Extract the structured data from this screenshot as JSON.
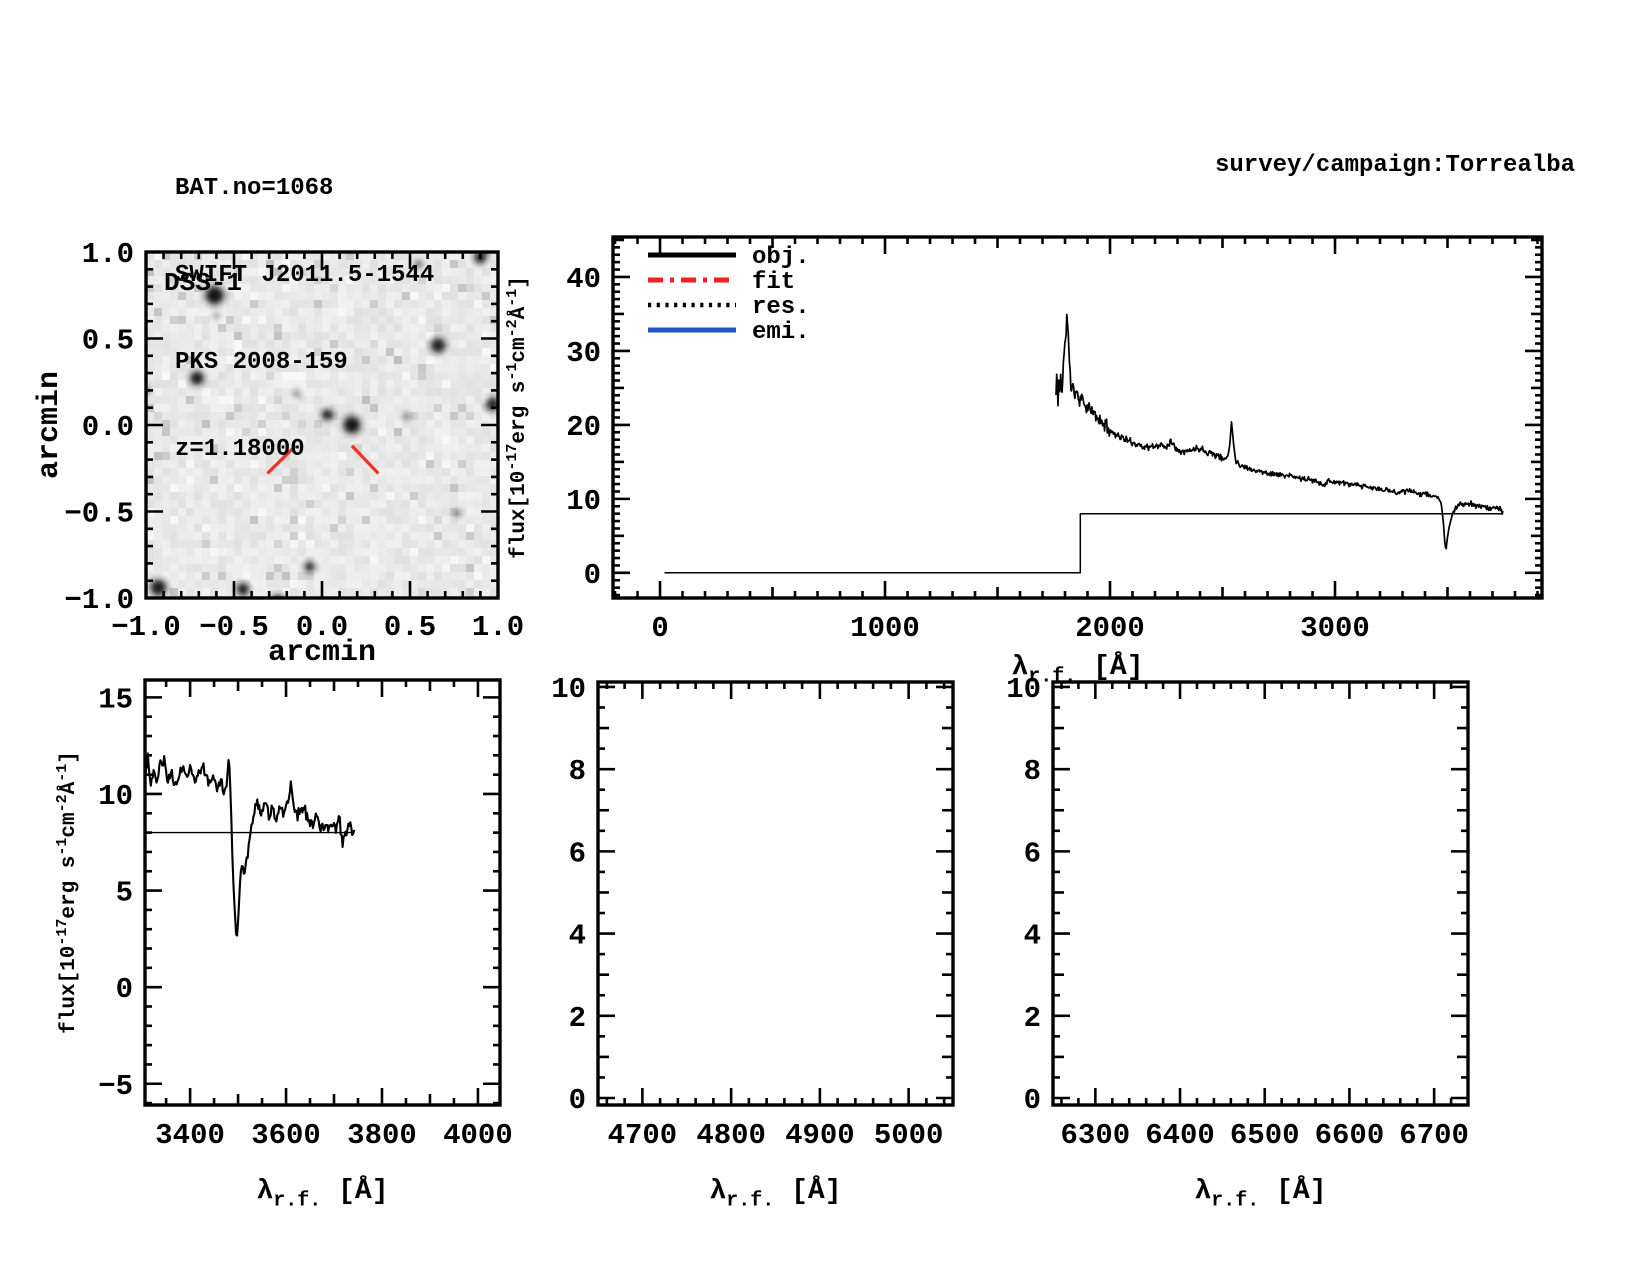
{
  "header": {
    "lines": [
      "BAT.no=1068",
      "SWIFT J2011.5-1544",
      "PKS 2008-159",
      "z=1.18000"
    ]
  },
  "corner": {
    "survey_label": "survey/campaign:Torrealba"
  },
  "colors": {
    "frame": "#000000",
    "obj": "#000000",
    "fit": "#ee2222",
    "res": "#000000",
    "emi": "#2255cc",
    "marker_red": "#ea3323",
    "image_bg": "#e9ebea"
  },
  "chart_data": [
    {
      "id": "dss",
      "type": "image",
      "title": "DSS-1",
      "xlabel": "arcmin",
      "ylabel": "arcmin",
      "xlim": [
        -1.0,
        1.0
      ],
      "ylim": [
        -1.0,
        1.0
      ],
      "xticks": [
        -1.0,
        -0.5,
        0.0,
        0.5,
        1.0
      ],
      "yticks": [
        -1.0,
        -0.5,
        0.0,
        0.5,
        1.0
      ],
      "x_minor": 0.1,
      "y_minor": 0.1,
      "tick_decimals": 1,
      "noise_seed": 12,
      "stars": [
        [
          -0.61,
          0.75,
          8,
          1.0
        ],
        [
          -0.71,
          0.27,
          6,
          0.95
        ],
        [
          0.66,
          0.46,
          6.5,
          0.92
        ],
        [
          0.03,
          0.06,
          5,
          0.92
        ],
        [
          0.17,
          0.0,
          7.5,
          1.0
        ],
        [
          0.97,
          0.12,
          6,
          0.88
        ],
        [
          -0.93,
          -0.94,
          7,
          0.95
        ],
        [
          -0.45,
          -0.95,
          5.5,
          0.9
        ],
        [
          -0.25,
          -1.02,
          6,
          0.9
        ],
        [
          -0.07,
          -0.82,
          4.5,
          0.85
        ],
        [
          0.9,
          0.97,
          5.5,
          0.9
        ],
        [
          0.93,
          1.02,
          4,
          0.7
        ],
        [
          0.55,
          0.93,
          3.5,
          0.45
        ],
        [
          -0.14,
          0.18,
          3.5,
          0.3
        ],
        [
          0.48,
          0.05,
          3.5,
          0.4
        ],
        [
          0.77,
          -0.51,
          3.5,
          0.35
        ],
        [
          -1.0,
          0.2,
          3.5,
          0.45
        ],
        [
          -0.6,
          0.63,
          3,
          0.3
        ]
      ],
      "markers": [
        {
          "x1": -0.31,
          "y1": -0.28,
          "x2": -0.15,
          "y2": -0.12
        },
        {
          "x1": 0.17,
          "y1": -0.12,
          "x2": 0.32,
          "y2": -0.28
        }
      ]
    },
    {
      "id": "main",
      "type": "line",
      "xlabel": "λ_{r.f.} [Å]",
      "ylabel": "flux[10^{-17}erg s^{-1}cm^{-2}Å^{-1}]",
      "xlim": [
        -209,
        3920
      ],
      "ylim": [
        -3.4,
        45.4
      ],
      "xticks": [
        0,
        1000,
        2000,
        3000
      ],
      "yticks": [
        0,
        10,
        20,
        30,
        40
      ],
      "x_minor": 100,
      "x_medium": 500,
      "y_minor": 1,
      "y_medium": 5,
      "tick_decimals": 0,
      "legend": [
        {
          "label": "obj.",
          "color": "#000000",
          "style": "solid"
        },
        {
          "label": "fit",
          "color": "#ee2222",
          "style": "dashdot"
        },
        {
          "label": "res.",
          "color": "#000000",
          "style": "dotted"
        },
        {
          "label": "emi.",
          "color": "#2255cc",
          "style": "solid"
        }
      ],
      "series": [
        {
          "name": "obj",
          "color": "#000000",
          "width": 1.7,
          "seed": 11,
          "step": 3,
          "noise": [
            [
              1760,
              2000,
              1.1
            ],
            [
              2000,
              2520,
              0.6
            ],
            [
              2560,
              3460,
              0.45
            ],
            [
              3525,
              3747,
              0.5
            ]
          ],
          "anchors": [
            [
              1760,
              24
            ],
            [
              1764,
              27.5
            ],
            [
              1768,
              22
            ],
            [
              1772,
              26
            ],
            [
              1776,
              23.5
            ],
            [
              1781,
              27
            ],
            [
              1786,
              24
            ],
            [
              1792,
              28
            ],
            [
              1798,
              30
            ],
            [
              1804,
              32.5
            ],
            [
              1810,
              35
            ],
            [
              1816,
              31
            ],
            [
              1822,
              27
            ],
            [
              1828,
              24.5
            ],
            [
              1836,
              26
            ],
            [
              1844,
              23.5
            ],
            [
              1852,
              25
            ],
            [
              1862,
              23
            ],
            [
              1872,
              24
            ],
            [
              1882,
              23
            ],
            [
              1895,
              22.5
            ],
            [
              1910,
              22
            ],
            [
              1930,
              21.5
            ],
            [
              1955,
              20.5
            ],
            [
              1980,
              20
            ],
            [
              2010,
              19
            ],
            [
              2040,
              18.5
            ],
            [
              2070,
              18
            ],
            [
              2100,
              17.6
            ],
            [
              2130,
              17.3
            ],
            [
              2160,
              17
            ],
            [
              2190,
              17
            ],
            [
              2220,
              17.3
            ],
            [
              2250,
              17
            ],
            [
              2270,
              17.9
            ],
            [
              2285,
              17.1
            ],
            [
              2310,
              16.6
            ],
            [
              2340,
              16.4
            ],
            [
              2370,
              16.7
            ],
            [
              2400,
              16.9
            ],
            [
              2430,
              16.4
            ],
            [
              2460,
              16.1
            ],
            [
              2490,
              15.6
            ],
            [
              2510,
              15.3
            ],
            [
              2524,
              15.8
            ],
            [
              2532,
              17.2
            ],
            [
              2540,
              20.4
            ],
            [
              2548,
              17.8
            ],
            [
              2558,
              15.2
            ],
            [
              2575,
              14.6
            ],
            [
              2600,
              14.3
            ],
            [
              2640,
              13.9
            ],
            [
              2680,
              13.6
            ],
            [
              2720,
              13.4
            ],
            [
              2760,
              13.2
            ],
            [
              2800,
              13.1
            ],
            [
              2840,
              12.8
            ],
            [
              2880,
              12.6
            ],
            [
              2920,
              12.4
            ],
            [
              2950,
              11.9
            ],
            [
              2970,
              12.4
            ],
            [
              3000,
              12.3
            ],
            [
              3040,
              12.1
            ],
            [
              3080,
              11.9
            ],
            [
              3120,
              11.7
            ],
            [
              3160,
              11.5
            ],
            [
              3200,
              11.3
            ],
            [
              3240,
              11.1
            ],
            [
              3280,
              10.9
            ],
            [
              3320,
              11.1
            ],
            [
              3360,
              10.8
            ],
            [
              3400,
              10.7
            ],
            [
              3435,
              10.4
            ],
            [
              3460,
              10.1
            ],
            [
              3472,
              9.4
            ],
            [
              3481,
              7
            ],
            [
              3488,
              4.2
            ],
            [
              3493,
              3
            ],
            [
              3499,
              4.6
            ],
            [
              3506,
              6
            ],
            [
              3514,
              7
            ],
            [
              3524,
              8.2
            ],
            [
              3540,
              8.9
            ],
            [
              3560,
              9.4
            ],
            [
              3580,
              9.1
            ],
            [
              3600,
              9.4
            ],
            [
              3620,
              9
            ],
            [
              3645,
              9.2
            ],
            [
              3670,
              8.8
            ],
            [
              3695,
              8.7
            ],
            [
              3720,
              8.9
            ],
            [
              3747,
              8.3
            ]
          ]
        },
        {
          "name": "res",
          "color": "#000000",
          "width": 1.5,
          "points": [
            [
              20,
              0
            ],
            [
              1868,
              0
            ],
            [
              1868,
              8
            ],
            [
              3747,
              8
            ]
          ]
        }
      ]
    },
    {
      "id": "zoom1",
      "type": "line",
      "xlabel": "λ_{r.f.} [Å]",
      "ylabel": "flux[10^{-17}erg s^{-1}cm^{-2}Å^{-1}]",
      "xlim": [
        3306,
        4046
      ],
      "ylim": [
        -6.1,
        15.9
      ],
      "xticks": [
        3400,
        3600,
        3800,
        4000
      ],
      "yticks": [
        -5,
        0,
        5,
        10,
        15
      ],
      "x_minor": 50,
      "x_medium": 100,
      "y_minor": 1,
      "tick_decimals": 0,
      "series": [
        {
          "name": "obj",
          "color": "#000000",
          "width": 2.1,
          "seed": 23,
          "step": 2,
          "noise": [
            [
              3306,
              3475,
              0.45
            ],
            [
              3520,
              3742,
              0.45
            ]
          ],
          "anchors": [
            [
              3306,
              11
            ],
            [
              3312,
              11.9
            ],
            [
              3318,
              10.4
            ],
            [
              3324,
              11.2
            ],
            [
              3330,
              10.6
            ],
            [
              3338,
              11.4
            ],
            [
              3346,
              11.6
            ],
            [
              3354,
              10.6
            ],
            [
              3362,
              11.2
            ],
            [
              3370,
              10.4
            ],
            [
              3378,
              11
            ],
            [
              3386,
              11.5
            ],
            [
              3394,
              10.8
            ],
            [
              3402,
              11.3
            ],
            [
              3410,
              10.5
            ],
            [
              3418,
              11.2
            ],
            [
              3426,
              11.5
            ],
            [
              3434,
              11
            ],
            [
              3442,
              10.6
            ],
            [
              3450,
              10.9
            ],
            [
              3458,
              10.3
            ],
            [
              3465,
              10.6
            ],
            [
              3470,
              10
            ],
            [
              3476,
              10.4
            ],
            [
              3481,
              12.1
            ],
            [
              3485,
              9.5
            ],
            [
              3489,
              6
            ],
            [
              3493,
              4
            ],
            [
              3497,
              2.3
            ],
            [
              3501,
              3.8
            ],
            [
              3505,
              5.9
            ],
            [
              3509,
              6.4
            ],
            [
              3513,
              5.7
            ],
            [
              3517,
              6.6
            ],
            [
              3522,
              7.2
            ],
            [
              3527,
              8.1
            ],
            [
              3533,
              9.3
            ],
            [
              3540,
              9.4
            ],
            [
              3548,
              8.9
            ],
            [
              3556,
              9.7
            ],
            [
              3564,
              8.8
            ],
            [
              3572,
              9.4
            ],
            [
              3580,
              8.7
            ],
            [
              3588,
              9.4
            ],
            [
              3596,
              9
            ],
            [
              3604,
              9.6
            ],
            [
              3610,
              10.7
            ],
            [
              3616,
              9.4
            ],
            [
              3624,
              8.9
            ],
            [
              3632,
              9.3
            ],
            [
              3640,
              9
            ],
            [
              3648,
              8.6
            ],
            [
              3656,
              8.4
            ],
            [
              3664,
              8.9
            ],
            [
              3672,
              8.1
            ],
            [
              3680,
              8.5
            ],
            [
              3688,
              8.2
            ],
            [
              3696,
              8.5
            ],
            [
              3704,
              8.1
            ],
            [
              3712,
              8.6
            ],
            [
              3718,
              7.4
            ],
            [
              3724,
              7.9
            ],
            [
              3732,
              8.3
            ],
            [
              3742,
              8.1
            ]
          ]
        },
        {
          "name": "res",
          "color": "#000000",
          "width": 1.4,
          "points": [
            [
              3306,
              8
            ],
            [
              3742,
              8
            ]
          ]
        }
      ]
    },
    {
      "id": "zoom2",
      "type": "line",
      "xlabel": "λ_{r.f.} [Å]",
      "ylabel": "",
      "xlim": [
        4650,
        5050
      ],
      "ylim": [
        -0.17,
        10.12
      ],
      "xticks": [
        4700,
        4800,
        4900,
        5000
      ],
      "yticks": [
        0,
        2,
        4,
        6,
        8,
        10
      ],
      "x_minor": 20,
      "y_minor": 0.5,
      "y_medium": 1,
      "tick_decimals": 0,
      "series": []
    },
    {
      "id": "zoom3",
      "type": "line",
      "xlabel": "λ_{r.f.} [Å]",
      "ylabel": "",
      "xlim": [
        6250,
        6740
      ],
      "ylim": [
        -0.17,
        10.12
      ],
      "xticks": [
        6300,
        6400,
        6500,
        6600,
        6700
      ],
      "yticks": [
        0,
        2,
        4,
        6,
        8,
        10
      ],
      "x_minor": 20,
      "y_minor": 0.5,
      "y_medium": 1,
      "tick_decimals": 0,
      "series": []
    }
  ]
}
